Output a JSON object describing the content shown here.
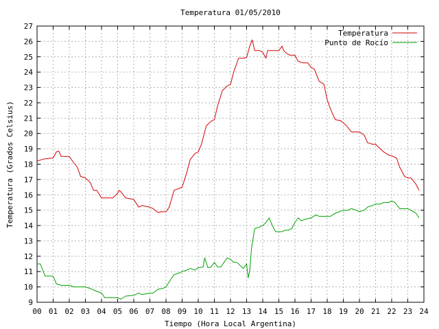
{
  "chart_data": {
    "type": "line",
    "title": "Temperatura 01/05/2010",
    "xlabel": "Tiempo (Hora Local Argentina)",
    "ylabel": "Temperatura (Grados Celsius)",
    "xlim": [
      0,
      24
    ],
    "ylim": [
      9,
      27
    ],
    "grid": true,
    "legend_position": "top-right",
    "x_ticks": [
      {
        "value": 0,
        "label": "00"
      },
      {
        "value": 1,
        "label": "01"
      },
      {
        "value": 2,
        "label": "02"
      },
      {
        "value": 3,
        "label": "03"
      },
      {
        "value": 4,
        "label": "04"
      },
      {
        "value": 5,
        "label": "05"
      },
      {
        "value": 6,
        "label": "06"
      },
      {
        "value": 7,
        "label": "07"
      },
      {
        "value": 8,
        "label": "08"
      },
      {
        "value": 9,
        "label": "09"
      },
      {
        "value": 10,
        "label": "10"
      },
      {
        "value": 11,
        "label": "11"
      },
      {
        "value": 12,
        "label": "12"
      },
      {
        "value": 13,
        "label": "13"
      },
      {
        "value": 14,
        "label": "14"
      },
      {
        "value": 15,
        "label": "15"
      },
      {
        "value": 16,
        "label": "16"
      },
      {
        "value": 17,
        "label": "17"
      },
      {
        "value": 18,
        "label": "18"
      },
      {
        "value": 19,
        "label": "19"
      },
      {
        "value": 20,
        "label": "20"
      },
      {
        "value": 21,
        "label": "21"
      },
      {
        "value": 22,
        "label": "22"
      },
      {
        "value": 23,
        "label": "23"
      },
      {
        "value": 24,
        "label": "24"
      }
    ],
    "y_ticks": [
      {
        "value": 9,
        "label": "9"
      },
      {
        "value": 10,
        "label": "10"
      },
      {
        "value": 11,
        "label": "11"
      },
      {
        "value": 12,
        "label": "12"
      },
      {
        "value": 13,
        "label": "13"
      },
      {
        "value": 14,
        "label": "14"
      },
      {
        "value": 15,
        "label": "15"
      },
      {
        "value": 16,
        "label": "16"
      },
      {
        "value": 17,
        "label": "17"
      },
      {
        "value": 18,
        "label": "18"
      },
      {
        "value": 19,
        "label": "19"
      },
      {
        "value": 20,
        "label": "20"
      },
      {
        "value": 21,
        "label": "21"
      },
      {
        "value": 22,
        "label": "22"
      },
      {
        "value": 23,
        "label": "23"
      },
      {
        "value": 24,
        "label": "24"
      },
      {
        "value": 25,
        "label": "25"
      },
      {
        "value": 26,
        "label": "26"
      },
      {
        "value": 27,
        "label": "27"
      }
    ],
    "series": [
      {
        "name": "Temperatura",
        "color": "#d40000",
        "x": [
          0.0,
          0.3,
          0.5,
          1.0,
          1.2,
          1.35,
          1.5,
          2.0,
          2.2,
          2.5,
          2.7,
          3.0,
          3.3,
          3.5,
          3.7,
          4.0,
          4.3,
          4.5,
          4.7,
          5.0,
          5.1,
          5.2,
          5.5,
          6.0,
          6.3,
          6.5,
          7.0,
          7.2,
          7.5,
          7.7,
          8.0,
          8.2,
          8.5,
          9.0,
          9.3,
          9.5,
          9.8,
          10.0,
          10.2,
          10.5,
          10.8,
          11.0,
          11.2,
          11.5,
          11.8,
          12.0,
          12.2,
          12.5,
          12.8,
          13.0,
          13.2,
          13.35,
          13.5,
          13.8,
          14.0,
          14.2,
          14.3,
          14.5,
          14.8,
          15.0,
          15.2,
          15.3,
          15.5,
          15.7,
          16.0,
          16.2,
          16.5,
          16.8,
          17.0,
          17.2,
          17.5,
          17.8,
          18.0,
          18.2,
          18.5,
          18.8,
          19.0,
          19.2,
          19.5,
          19.8,
          20.0,
          20.3,
          20.5,
          20.8,
          21.0,
          21.3,
          21.5,
          21.8,
          22.0,
          22.3,
          22.5,
          22.8,
          23.0,
          23.2,
          23.5,
          23.7
        ],
        "values": [
          18.2,
          18.3,
          18.35,
          18.4,
          18.8,
          18.85,
          18.5,
          18.5,
          18.2,
          17.8,
          17.2,
          17.1,
          16.8,
          16.3,
          16.3,
          15.8,
          15.8,
          15.8,
          15.8,
          16.1,
          16.3,
          16.2,
          15.8,
          15.7,
          15.2,
          15.3,
          15.2,
          15.1,
          14.85,
          14.9,
          14.9,
          15.2,
          16.3,
          16.5,
          17.5,
          18.3,
          18.7,
          18.8,
          19.3,
          20.5,
          20.8,
          20.9,
          21.8,
          22.8,
          23.1,
          23.2,
          24.0,
          24.9,
          24.9,
          24.95,
          25.7,
          26.1,
          25.4,
          25.4,
          25.3,
          24.9,
          25.4,
          25.4,
          25.4,
          25.4,
          25.7,
          25.4,
          25.2,
          25.1,
          25.1,
          24.7,
          24.6,
          24.6,
          24.3,
          24.2,
          23.4,
          23.2,
          22.2,
          21.6,
          20.9,
          20.85,
          20.7,
          20.5,
          20.1,
          20.1,
          20.1,
          19.9,
          19.4,
          19.3,
          19.3,
          19.0,
          18.8,
          18.6,
          18.55,
          18.4,
          17.8,
          17.2,
          17.1,
          17.1,
          16.7,
          16.3
        ]
      },
      {
        "name": "Punto de Rocío",
        "color": "#00a000",
        "x": [
          0.0,
          0.2,
          0.5,
          1.0,
          1.2,
          1.5,
          2.0,
          2.3,
          2.5,
          3.0,
          3.3,
          3.5,
          4.0,
          4.2,
          4.5,
          5.0,
          5.2,
          5.5,
          6.0,
          6.3,
          6.5,
          7.0,
          7.2,
          7.5,
          7.8,
          8.0,
          8.3,
          8.5,
          8.8,
          9.0,
          9.3,
          9.5,
          9.8,
          10.0,
          10.3,
          10.4,
          10.6,
          10.8,
          11.0,
          11.2,
          11.4,
          11.6,
          11.8,
          12.0,
          12.2,
          12.4,
          12.6,
          12.8,
          13.0,
          13.1,
          13.2,
          13.3,
          13.5,
          13.8,
          14.0,
          14.2,
          14.4,
          14.6,
          14.8,
          15.0,
          15.2,
          15.4,
          15.6,
          15.8,
          16.0,
          16.2,
          16.4,
          16.6,
          17.0,
          17.3,
          17.5,
          17.8,
          18.0,
          18.2,
          18.5,
          19.0,
          19.3,
          19.5,
          19.8,
          20.0,
          20.3,
          20.5,
          20.8,
          21.0,
          21.3,
          21.5,
          21.8,
          22.0,
          22.2,
          22.5,
          22.8,
          23.0,
          23.2,
          23.5,
          23.7
        ],
        "values": [
          11.5,
          11.5,
          10.7,
          10.7,
          10.2,
          10.1,
          10.1,
          10.0,
          10.0,
          10.0,
          9.9,
          9.8,
          9.6,
          9.3,
          9.3,
          9.3,
          9.2,
          9.4,
          9.45,
          9.6,
          9.5,
          9.6,
          9.6,
          9.85,
          9.9,
          10.0,
          10.5,
          10.8,
          10.9,
          11.0,
          11.1,
          11.2,
          11.1,
          11.25,
          11.3,
          11.9,
          11.25,
          11.3,
          11.6,
          11.3,
          11.3,
          11.6,
          11.9,
          11.8,
          11.6,
          11.6,
          11.4,
          11.2,
          11.5,
          10.6,
          11.1,
          12.5,
          13.8,
          13.9,
          14.0,
          14.2,
          14.5,
          14.0,
          13.6,
          13.6,
          13.6,
          13.7,
          13.7,
          13.8,
          14.2,
          14.5,
          14.3,
          14.4,
          14.5,
          14.7,
          14.6,
          14.6,
          14.6,
          14.6,
          14.8,
          15.0,
          15.0,
          15.1,
          15.0,
          14.9,
          15.0,
          15.2,
          15.3,
          15.4,
          15.4,
          15.5,
          15.5,
          15.6,
          15.5,
          15.1,
          15.1,
          15.1,
          15.0,
          14.8,
          14.5
        ]
      }
    ]
  }
}
